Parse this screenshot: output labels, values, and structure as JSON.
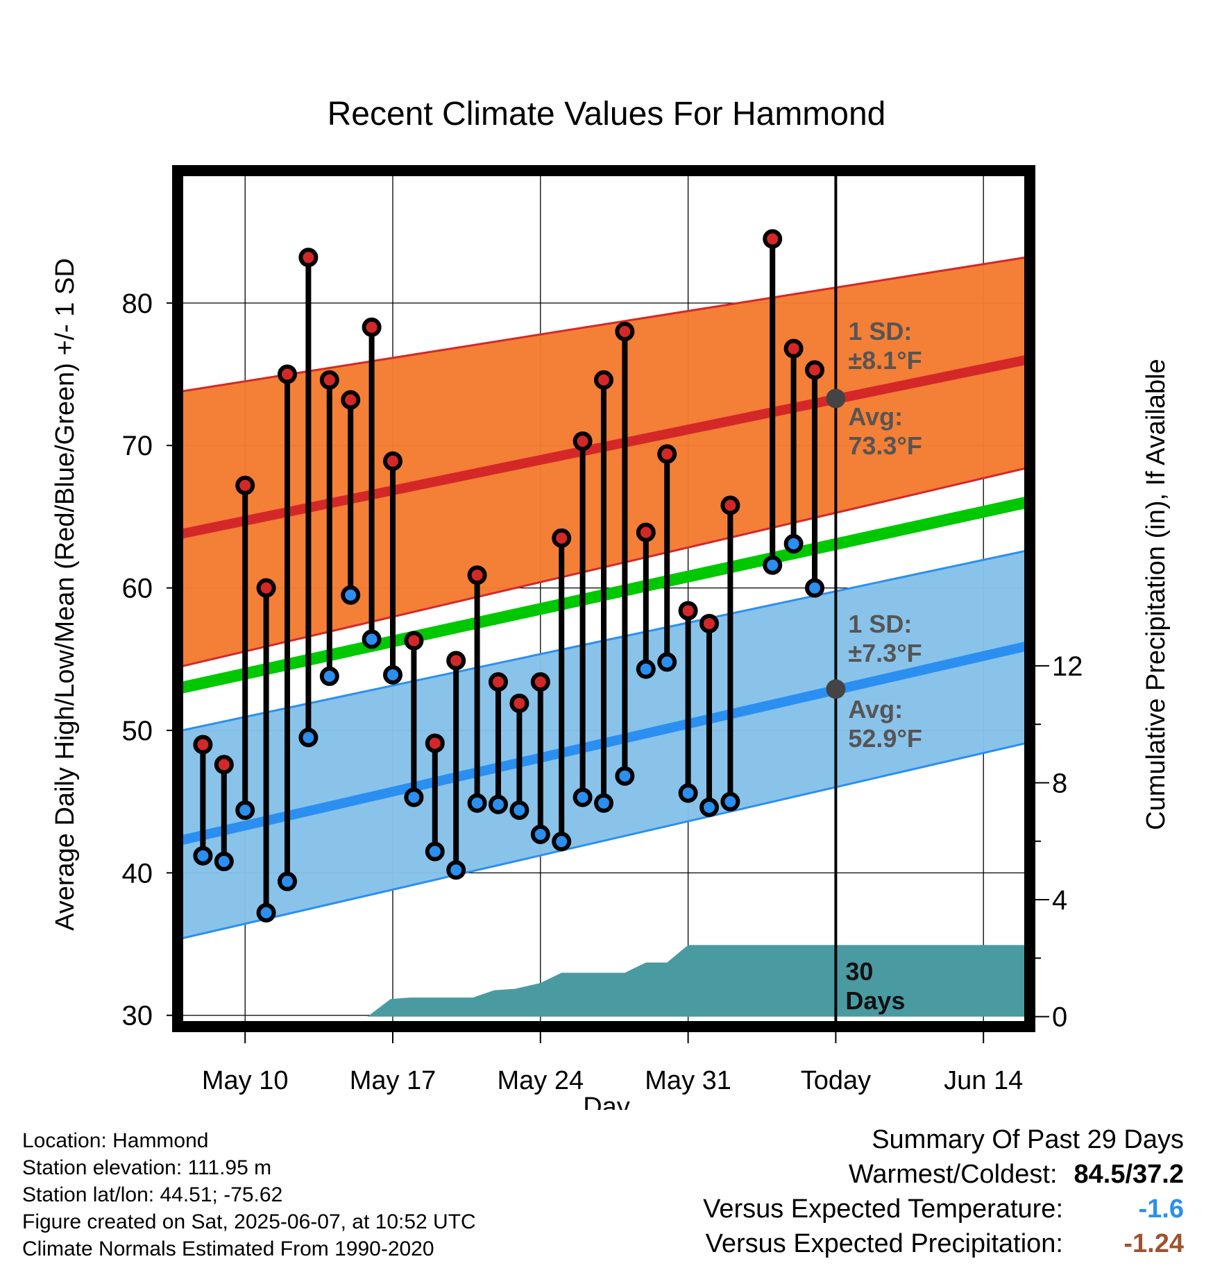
{
  "chart_data": {
    "type": "line",
    "title": "Recent Climate Values For Hammond",
    "xlabel": "Day",
    "ylabel": "Average Daily High/Low/Mean (Red/Blue/Green) +/- 1 SD",
    "y2label": "Cumulative Precipitation (in), If Available",
    "ylim": [
      29.5,
      89
    ],
    "y2lim": [
      -0.2,
      28.8
    ],
    "yticks": [
      30,
      40,
      50,
      60,
      70,
      80
    ],
    "y2ticks": [
      0,
      4,
      8,
      12
    ],
    "xrange": [
      0,
      40
    ],
    "xticks": [
      {
        "day": 3,
        "label": "May 10"
      },
      {
        "day": 10,
        "label": "May 17"
      },
      {
        "day": 17,
        "label": "May 24"
      },
      {
        "day": 24,
        "label": "May 31"
      },
      {
        "day": 31,
        "label": "Today"
      },
      {
        "day": 38,
        "label": "Jun 14"
      }
    ],
    "today_day": 31,
    "series": [
      {
        "name": "Daily High",
        "color": "#d42828",
        "days": [
          1,
          2,
          3,
          4,
          5,
          6,
          7,
          8,
          9,
          10,
          11,
          12,
          13,
          14,
          15,
          16,
          17,
          18,
          19,
          20,
          21,
          22,
          23,
          24,
          25,
          26,
          28,
          29,
          30
        ],
        "values": [
          49.0,
          47.6,
          67.2,
          60.0,
          75.0,
          83.2,
          74.6,
          73.2,
          78.3,
          68.9,
          56.3,
          49.1,
          54.9,
          60.9,
          53.4,
          51.9,
          53.4,
          63.5,
          70.3,
          74.6,
          78.0,
          63.9,
          69.4,
          58.4,
          57.5,
          65.8,
          84.5,
          76.8,
          75.3
        ]
      },
      {
        "name": "Daily Low",
        "color": "#2a8ff0",
        "days": [
          1,
          2,
          3,
          4,
          5,
          6,
          7,
          8,
          9,
          10,
          11,
          12,
          13,
          14,
          15,
          16,
          17,
          18,
          19,
          20,
          21,
          22,
          23,
          24,
          25,
          26,
          28,
          29,
          30
        ],
        "values": [
          41.2,
          40.8,
          44.4,
          37.2,
          39.4,
          49.5,
          53.8,
          59.5,
          56.4,
          53.9,
          45.3,
          41.5,
          40.2,
          44.9,
          44.8,
          44.4,
          42.7,
          42.2,
          45.3,
          44.9,
          46.8,
          54.3,
          54.8,
          45.6,
          44.6,
          45.0,
          61.6,
          63.1,
          60.0
        ]
      }
    ],
    "normals": {
      "x": [
        0,
        40
      ],
      "high_avg": [
        63.8,
        76.0
      ],
      "high_upper": [
        73.8,
        83.2
      ],
      "high_lower": [
        54.5,
        68.4
      ],
      "mean_avg": [
        53.0,
        66.0
      ],
      "low_avg": [
        42.3,
        55.9
      ],
      "low_upper": [
        50.0,
        62.6
      ],
      "low_lower": [
        35.4,
        49.1
      ]
    },
    "precip": {
      "days": [
        0,
        8.8,
        9.9,
        10.8,
        13.8,
        14.8,
        15.8,
        17.0,
        18.0,
        19.0,
        20.0,
        21.0,
        22.0,
        23.0,
        24.0,
        25.0,
        31.0,
        40.0
      ],
      "values": [
        0.0,
        0.0,
        0.6,
        0.65,
        0.65,
        0.9,
        0.95,
        1.15,
        1.5,
        1.5,
        1.5,
        1.5,
        1.85,
        1.85,
        2.45,
        2.45,
        2.45,
        2.45
      ]
    },
    "annotations": {
      "high_sd_line1": "1 SD:",
      "high_sd_line2": "±8.1°F",
      "high_avg_line1": "Avg:",
      "high_avg_line2": "73.3°F",
      "high_today_value": 73.3,
      "low_sd_line1": "1 SD:",
      "low_sd_line2": "±7.3°F",
      "low_avg_line1": "Avg:",
      "low_avg_line2": "52.9°F",
      "low_today_value": 52.9,
      "precip_days_line1": "30",
      "precip_days_line2": "Days"
    },
    "colors": {
      "high_band": "#f47b30",
      "high_line": "#d42828",
      "low_band": "#85c1e9",
      "low_line": "#2a8ff0",
      "mean_line": "#00c800",
      "precip_fill": "#4a9aa2",
      "annotation_text": "#555555"
    }
  },
  "footer": {
    "location": "Location: Hammond",
    "elevation": "Station elevation: 111.95 m",
    "latlon": "Station lat/lon: 44.51; -75.62",
    "created": "Figure created on Sat, 2025-06-07, at 10:52 UTC",
    "normals": "Climate Normals Estimated From 1990-2020"
  },
  "summary": {
    "title": "Summary Of Past 29 Days",
    "warm_cold_label": "Warmest/Coldest:",
    "warm_cold_value": "84.5/37.2",
    "temp_label": "Versus Expected Temperature:",
    "temp_value": "-1.6",
    "temp_color": "#2a8ff0",
    "precip_label": "Versus Expected Precipitation:",
    "precip_value": "-1.24",
    "precip_color": "#a0522d"
  }
}
